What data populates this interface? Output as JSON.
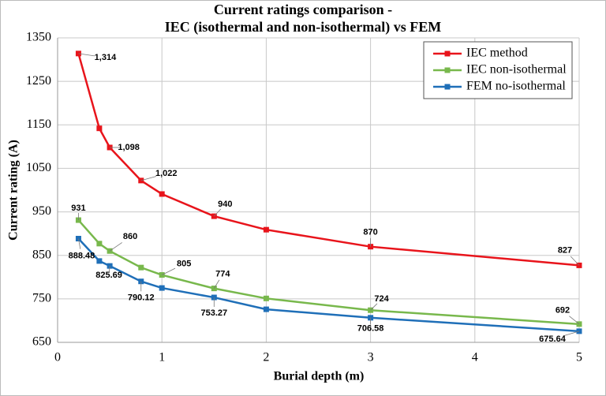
{
  "chart_data": {
    "type": "line",
    "title": [
      "Current ratings comparison -",
      "IEC (isothermal and non-isothermal) vs FEM"
    ],
    "x_label": "Burial depth (m)",
    "y_label": "Current rating (A)",
    "x": [
      0.2,
      0.4,
      0.5,
      0.8,
      1,
      1.5,
      2,
      3,
      5
    ],
    "series": [
      {
        "name": "IEC method",
        "color": "#e8141b",
        "values": [
          1314,
          1142,
          1098,
          1022,
          991,
          940,
          909,
          870,
          827
        ],
        "value_labels": [
          "1,314",
          null,
          "1,098",
          "1,022",
          null,
          "940",
          null,
          "870",
          "827"
        ]
      },
      {
        "name": "IEC non-isothermal",
        "color": "#78b84c",
        "values": [
          931,
          877,
          860,
          822,
          805,
          774,
          751,
          724,
          692
        ],
        "value_labels": [
          "931",
          null,
          "860",
          null,
          "805",
          "774",
          null,
          "724",
          "692"
        ]
      },
      {
        "name": "FEM no-isothermal",
        "color": "#1f6fb8",
        "values": [
          888.48,
          837,
          825.69,
          790.12,
          775,
          753.27,
          726,
          706.58,
          675.64
        ],
        "value_labels": [
          "888.48",
          null,
          "825.69",
          "790.12",
          null,
          "753.27",
          null,
          "706.58",
          "675.64"
        ]
      }
    ],
    "xlim": [
      0,
      5
    ],
    "xticks": [
      0,
      1,
      2,
      3,
      4,
      5
    ],
    "ylim": [
      650,
      1350
    ],
    "yticks": [
      650,
      750,
      850,
      950,
      1050,
      1150,
      1250,
      1350
    ],
    "grid": true,
    "legend": "upper right"
  }
}
